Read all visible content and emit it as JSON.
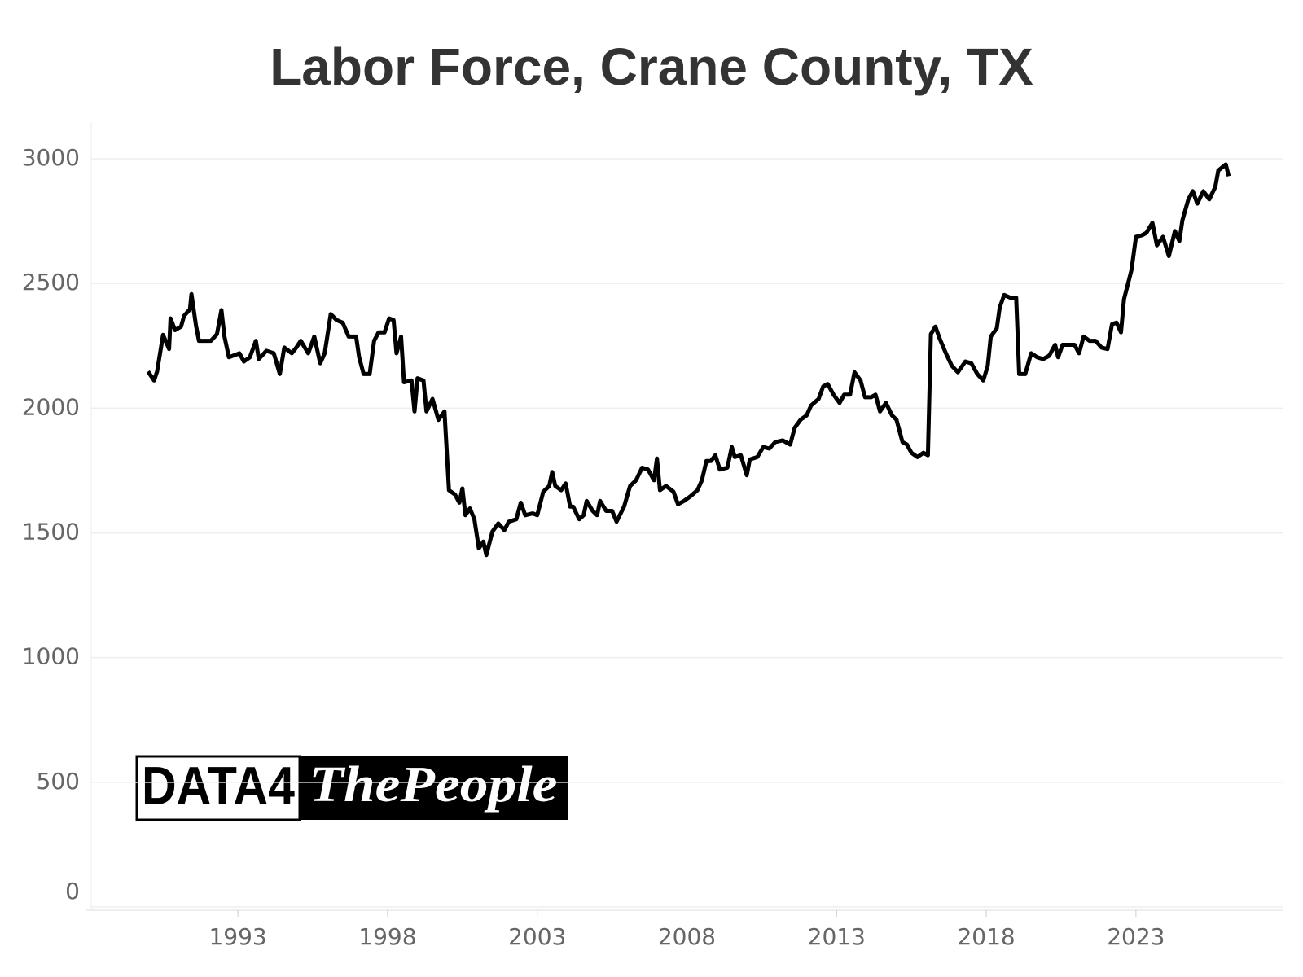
{
  "chart_data": {
    "type": "line",
    "title": "Labor Force, Crane County, TX",
    "color": "#000000",
    "x": [
      1990.0,
      1990.2,
      1990.3,
      1990.5,
      1990.7,
      1990.75,
      1990.9,
      1991.1,
      1991.2,
      1991.4,
      1991.45,
      1991.6,
      1991.7,
      1991.9,
      1992.1,
      1992.3,
      1992.45,
      1992.55,
      1992.7,
      1993.05,
      1993.2,
      1993.4,
      1993.6,
      1993.7,
      1993.95,
      1994.2,
      1994.4,
      1994.55,
      1994.8,
      1994.95,
      1995.1,
      1995.35,
      1995.55,
      1995.75,
      1995.9,
      1996.1,
      1996.3,
      1996.5,
      1996.7,
      1996.95,
      1997.05,
      1997.2,
      1997.4,
      1997.55,
      1997.7,
      1997.9,
      1998.05,
      1998.2,
      1998.3,
      1998.45,
      1998.55,
      1998.8,
      1998.9,
      1999.0,
      1999.2,
      1999.3,
      1999.5,
      1999.7,
      1999.9,
      2000.05,
      2000.25,
      2000.4,
      2000.5,
      2000.6,
      2000.75,
      2000.9,
      2001.05,
      2001.2,
      2001.3,
      2001.5,
      2001.7,
      2001.9,
      2002.05,
      2002.3,
      2002.45,
      2002.6,
      2002.85,
      2003.0,
      2003.2,
      2003.4,
      2003.5,
      2003.6,
      2003.8,
      2003.95,
      2004.1,
      2004.2,
      2004.4,
      2004.55,
      2004.65,
      2004.85,
      2005.0,
      2005.1,
      2005.3,
      2005.5,
      2005.65,
      2005.9,
      2006.1,
      2006.3,
      2006.5,
      2006.7,
      2006.9,
      2007.0,
      2007.1,
      2007.3,
      2007.55,
      2007.7,
      2007.9,
      2008.1,
      2008.35,
      2008.5,
      2008.65,
      2008.8,
      2008.95,
      2009.1,
      2009.35,
      2009.5,
      2009.6,
      2009.8,
      2010.0,
      2010.1,
      2010.35,
      2010.55,
      2010.75,
      2010.95,
      2011.2,
      2011.45,
      2011.6,
      2011.8,
      2012.0,
      2012.15,
      2012.4,
      2012.55,
      2012.7,
      2012.9,
      2013.1,
      2013.25,
      2013.45,
      2013.6,
      2013.8,
      2013.95,
      2014.15,
      2014.3,
      2014.45,
      2014.65,
      2014.85,
      2015.0,
      2015.2,
      2015.35,
      2015.5,
      2015.7,
      2015.9,
      2016.05,
      2016.15,
      2016.3,
      2016.45,
      2016.65,
      2016.85,
      2017.05,
      2017.3,
      2017.5,
      2017.7,
      2017.9,
      2018.05,
      2018.15,
      2018.35,
      2018.45,
      2018.6,
      2018.8,
      2019.0,
      2019.1,
      2019.3,
      2019.5,
      2019.7,
      2019.9,
      2020.1,
      2020.3,
      2020.4,
      2020.55,
      2020.75,
      2020.95,
      2021.1,
      2021.25,
      2021.45,
      2021.65,
      2021.85,
      2022.05,
      2022.2,
      2022.35,
      2022.5,
      2022.6,
      2022.85,
      2023.0,
      2023.2,
      2023.35,
      2023.55,
      2023.7,
      2023.9,
      2024.1,
      2024.3,
      2024.45,
      2024.55,
      2024.75,
      2024.9,
      2025.05,
      2025.25,
      2025.45,
      2025.65,
      2025.75,
      2026.0,
      2026.1
    ],
    "values": [
      2147,
      2111,
      2147,
      2294,
      2237,
      2360,
      2313,
      2327,
      2370,
      2397,
      2457,
      2330,
      2270,
      2270,
      2270,
      2297,
      2393,
      2287,
      2204,
      2220,
      2187,
      2204,
      2270,
      2197,
      2230,
      2220,
      2137,
      2243,
      2220,
      2243,
      2270,
      2220,
      2287,
      2180,
      2220,
      2377,
      2353,
      2343,
      2287,
      2287,
      2204,
      2137,
      2137,
      2270,
      2304,
      2304,
      2360,
      2353,
      2220,
      2287,
      2104,
      2111,
      1987,
      2120,
      2111,
      1987,
      2037,
      1953,
      1987,
      1671,
      1654,
      1621,
      1678,
      1571,
      1598,
      1555,
      1438,
      1465,
      1411,
      1505,
      1538,
      1511,
      1545,
      1555,
      1621,
      1571,
      1578,
      1571,
      1665,
      1688,
      1744,
      1688,
      1671,
      1698,
      1605,
      1605,
      1555,
      1571,
      1628,
      1588,
      1571,
      1628,
      1588,
      1588,
      1545,
      1605,
      1688,
      1711,
      1761,
      1754,
      1711,
      1798,
      1671,
      1688,
      1665,
      1615,
      1628,
      1645,
      1671,
      1711,
      1788,
      1788,
      1811,
      1754,
      1761,
      1844,
      1804,
      1811,
      1731,
      1794,
      1804,
      1844,
      1838,
      1864,
      1871,
      1854,
      1921,
      1954,
      1971,
      2011,
      2037,
      2087,
      2097,
      2054,
      2021,
      2054,
      2054,
      2144,
      2111,
      2044,
      2044,
      2054,
      1987,
      2021,
      1971,
      1954,
      1864,
      1854,
      1821,
      1804,
      1821,
      1811,
      2297,
      2327,
      2277,
      2220,
      2170,
      2144,
      2187,
      2180,
      2137,
      2111,
      2170,
      2287,
      2320,
      2404,
      2454,
      2443,
      2443,
      2137,
      2137,
      2220,
      2204,
      2197,
      2210,
      2254,
      2204,
      2254,
      2254,
      2254,
      2220,
      2287,
      2270,
      2270,
      2243,
      2237,
      2337,
      2343,
      2304,
      2437,
      2554,
      2687,
      2693,
      2703,
      2743,
      2653,
      2687,
      2610,
      2710,
      2670,
      2753,
      2837,
      2870,
      2820,
      2870,
      2837,
      2887,
      2953,
      2977,
      2930
    ],
    "xlim": [
      1988.1,
      2027.9
    ],
    "xticks": [
      1993,
      1998,
      2003,
      2008,
      2013,
      2018,
      2023
    ],
    "ylim": [
      0,
      3000
    ],
    "yticks": [
      0,
      500,
      1000,
      1500,
      2000,
      2500,
      3000
    ],
    "grid": true,
    "logo": [
      "DATA4",
      "ThePeople"
    ]
  }
}
